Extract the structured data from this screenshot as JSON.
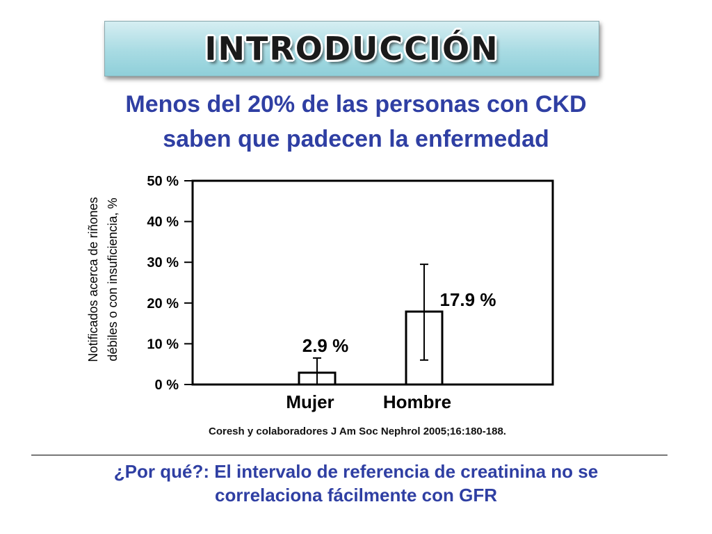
{
  "title": "INTRODUCCIÓN",
  "headline": {
    "line1": "Menos del 20% de las personas con CKD",
    "line2": "saben que padecen la enfermedad"
  },
  "chart_data": {
    "type": "bar",
    "categories": [
      "Mujer",
      "Hombre"
    ],
    "values": [
      2.9,
      17.9
    ],
    "value_labels": [
      "2.9 %",
      "17.9 %"
    ],
    "error_bars": [
      {
        "low": 0,
        "high": 6.5
      },
      {
        "low": 6.0,
        "high": 29.5
      }
    ],
    "ylim": [
      0,
      50
    ],
    "yticks": [
      0,
      10,
      20,
      30,
      40,
      50
    ],
    "ytick_labels": [
      "0 %",
      "10 %",
      "20 %",
      "30 %",
      "40 %",
      "50 %"
    ],
    "ylabel_line1": "Notificados acerca de riñones",
    "ylabel_line2": "débiles o con insuficiencia, %",
    "xlabel": "",
    "title": "",
    "grid": false
  },
  "citation": "Coresh y colaboradores J Am Soc Nephrol 2005;16:180-188.",
  "bottom": {
    "line1": "¿Por qué?: El intervalo de referencia de creatinina no se",
    "line2": "correlaciona fácilmente con GFR"
  },
  "colors": {
    "headline": "#2f3fa3",
    "banner": "#a8dbe3",
    "axis": "#000000"
  }
}
